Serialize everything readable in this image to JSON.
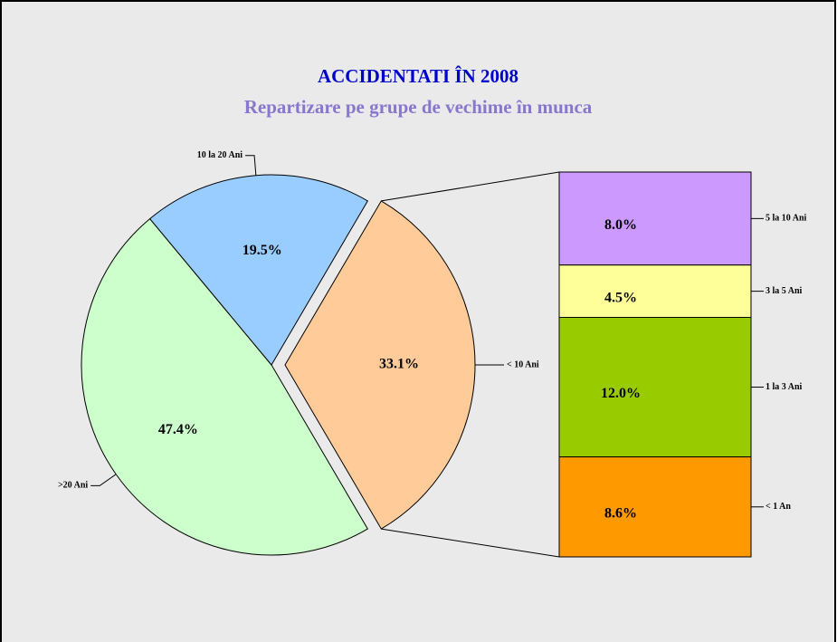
{
  "chart_data": {
    "type": "pie-of-bar",
    "title": "ACCIDENTATI  ÎN 2008",
    "subtitle": "Repartizare pe grupe de vechime în munca",
    "slices": [
      {
        "name": "< 10 Ani",
        "value": 33.1,
        "label": "33.1%",
        "color": "#ffcc99",
        "breakdown": [
          {
            "name": "5 la 10 Ani",
            "value": 8.0,
            "label": "8.0%",
            "color": "#cc99ff"
          },
          {
            "name": "3 la 5 Ani",
            "value": 4.5,
            "label": "4.5%",
            "color": "#ffff99"
          },
          {
            "name": "1 la 3 Ani",
            "value": 12.0,
            "label": "12.0%",
            "color": "#99cc00"
          },
          {
            "name": "< 1 An",
            "value": 8.6,
            "label": "8.6%",
            "color": "#ff9900"
          }
        ]
      },
      {
        "name": ">20 Ani",
        "value": 47.4,
        "label": "47.4%",
        "color": "#ccffcc"
      },
      {
        "name": "10 la 20 Ani",
        "value": 19.5,
        "label": "19.5%",
        "color": "#99ccff"
      }
    ]
  }
}
